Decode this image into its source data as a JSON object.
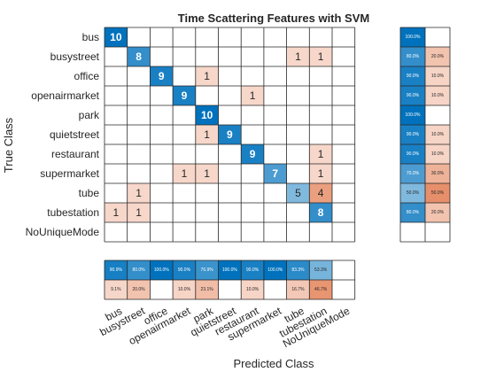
{
  "chart_data": {
    "type": "heatmap",
    "title": "Time Scattering Features with SVM",
    "xlabel": "Predicted Class",
    "ylabel": "True Class",
    "classes": [
      "bus",
      "busystreet",
      "office",
      "openairmarket",
      "park",
      "quietstreet",
      "restaurant",
      "supermarket",
      "tube",
      "tubestation",
      "NoUniqueMode"
    ],
    "matrix": [
      [
        10,
        0,
        0,
        0,
        0,
        0,
        0,
        0,
        0,
        0,
        0
      ],
      [
        0,
        8,
        0,
        0,
        0,
        0,
        0,
        0,
        1,
        1,
        0
      ],
      [
        0,
        0,
        9,
        0,
        1,
        0,
        0,
        0,
        0,
        0,
        0
      ],
      [
        0,
        0,
        0,
        9,
        0,
        0,
        1,
        0,
        0,
        0,
        0
      ],
      [
        0,
        0,
        0,
        0,
        10,
        0,
        0,
        0,
        0,
        0,
        0
      ],
      [
        0,
        0,
        0,
        0,
        1,
        9,
        0,
        0,
        0,
        0,
        0
      ],
      [
        0,
        0,
        0,
        0,
        0,
        0,
        9,
        0,
        0,
        1,
        0
      ],
      [
        0,
        0,
        0,
        1,
        1,
        0,
        0,
        7,
        0,
        1,
        0
      ],
      [
        0,
        1,
        0,
        0,
        0,
        0,
        0,
        0,
        5,
        4,
        0
      ],
      [
        1,
        1,
        0,
        0,
        0,
        0,
        0,
        0,
        0,
        8,
        0
      ],
      [
        0,
        0,
        0,
        0,
        0,
        0,
        0,
        0,
        0,
        0,
        0
      ]
    ],
    "row_summary": [
      [
        "100.0%",
        ""
      ],
      [
        "80.0%",
        "20.0%"
      ],
      [
        "90.0%",
        "10.0%"
      ],
      [
        "90.0%",
        "10.0%"
      ],
      [
        "100.0%",
        ""
      ],
      [
        "90.0%",
        "10.0%"
      ],
      [
        "90.0%",
        "10.0%"
      ],
      [
        "70.0%",
        "30.0%"
      ],
      [
        "50.0%",
        "50.0%"
      ],
      [
        "80.0%",
        "20.0%"
      ],
      [
        "",
        ""
      ]
    ],
    "column_summary": [
      [
        "90.9%",
        "9.1%"
      ],
      [
        "80.0%",
        "20.0%"
      ],
      [
        "100.0%",
        ""
      ],
      [
        "90.0%",
        "10.0%"
      ],
      [
        "76.9%",
        "23.1%"
      ],
      [
        "100.0%",
        ""
      ],
      [
        "90.0%",
        "10.0%"
      ],
      [
        "100.0%",
        ""
      ],
      [
        "83.3%",
        "16.7%"
      ],
      [
        "53.3%",
        "46.7%"
      ],
      [
        "",
        ""
      ]
    ],
    "colors": {
      "correct": "#0072bd",
      "incorrect": "#d95319",
      "grid": "#262626",
      "background": "#ffffff"
    }
  }
}
